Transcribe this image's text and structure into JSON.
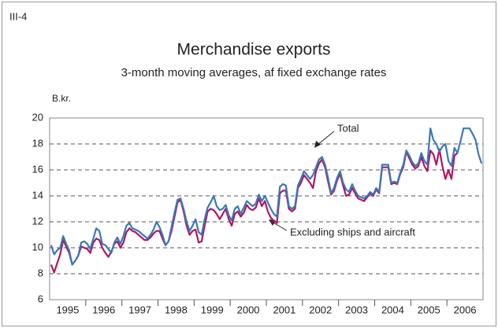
{
  "figure_label": "III-4",
  "chart_data": {
    "type": "line",
    "title": "Merchandise exports",
    "subtitle": "3-month moving averages, af fixed exchange rates",
    "y_axis_label": "B.kr.",
    "categories": [
      "1995",
      "1996",
      "1997",
      "1998",
      "1999",
      "2000",
      "2001",
      "2002",
      "2003",
      "2004",
      "2005",
      "2006"
    ],
    "ylim": [
      6,
      20
    ],
    "yticks": [
      6,
      8,
      10,
      12,
      14,
      16,
      18,
      20
    ],
    "grid": true,
    "series": [
      {
        "name": "Total",
        "color": "#3a78b8",
        "values": [
          [
            10.2,
            9.5,
            9.8,
            10.0,
            10.9,
            10.3,
            9.8,
            8.7,
            9.0,
            9.4,
            10.4,
            10.5
          ],
          [
            10.3,
            9.9,
            10.7,
            11.5,
            11.3,
            10.3,
            10.2,
            9.9,
            9.6,
            10.4,
            10.8,
            10.3
          ],
          [
            10.9,
            11.7,
            11.9,
            11.5,
            11.4,
            11.3,
            11.1,
            10.9,
            10.7,
            11.0,
            11.4,
            12.0
          ],
          [
            11.6,
            11.0,
            10.2,
            10.5,
            11.6,
            12.7,
            13.7,
            13.8,
            13.0,
            12.0,
            11.3,
            11.7
          ],
          [
            12.2,
            11.2,
            11.0,
            12.2,
            13.1,
            13.5,
            14.0,
            13.2,
            12.9,
            13.0,
            13.3,
            12.5
          ],
          [
            12.1,
            13.0,
            13.2,
            12.6,
            13.1,
            13.6,
            13.4,
            13.2,
            13.4,
            14.1,
            13.6,
            14.0
          ],
          [
            13.5,
            13.0,
            12.6,
            12.4,
            14.7,
            14.9,
            14.8,
            13.2,
            13.0,
            13.2,
            14.8,
            15.3
          ],
          [
            15.9,
            15.6,
            15.3,
            15.6,
            16.2,
            16.8,
            17.0,
            16.4,
            15.4,
            14.2,
            14.6,
            15.4
          ],
          [
            15.9,
            15.0,
            14.5,
            14.3,
            14.9,
            14.4,
            14.0,
            13.9,
            13.8,
            14.0,
            14.3,
            14.1
          ],
          [
            14.6,
            14.3,
            16.4,
            16.4,
            16.4,
            15.0,
            15.1,
            15.0,
            15.8,
            16.4,
            17.5,
            17.1
          ],
          [
            16.6,
            16.3,
            16.5,
            17.3,
            16.7,
            16.4,
            19.2,
            18.3,
            18.0,
            17.4,
            17.8,
            18.0
          ],
          [
            16.7,
            16.3,
            17.7,
            17.3,
            18.2,
            19.2,
            19.2,
            19.2,
            18.8,
            18.3,
            17.2,
            16.5
          ]
        ]
      },
      {
        "name": "Excluding ships and aircraft",
        "color": "#b0175f",
        "values": [
          [
            8.7,
            8.1,
            8.8,
            9.5,
            10.6,
            10.1,
            9.6,
            8.7,
            9.0,
            9.4,
            10.1,
            10.0
          ],
          [
            9.9,
            9.6,
            10.4,
            10.7,
            10.6,
            10.0,
            9.6,
            9.3,
            9.7,
            10.3,
            10.5,
            10.0
          ],
          [
            10.4,
            11.2,
            11.5,
            11.3,
            11.2,
            11.0,
            10.8,
            10.6,
            10.6,
            10.8,
            11.1,
            11.3
          ],
          [
            11.3,
            10.7,
            10.2,
            10.5,
            11.3,
            12.4,
            13.5,
            13.7,
            12.8,
            11.7,
            11.0,
            11.3
          ],
          [
            11.4,
            10.4,
            10.5,
            11.7,
            12.8,
            13.0,
            12.9,
            12.6,
            12.2,
            12.6,
            13.0,
            12.2
          ],
          [
            11.7,
            12.6,
            12.8,
            12.4,
            12.7,
            13.3,
            13.0,
            12.9,
            13.1,
            13.8,
            13.2,
            13.6
          ],
          [
            12.8,
            12.3,
            12.1,
            11.9,
            14.2,
            14.4,
            14.4,
            13.0,
            12.8,
            13.0,
            14.6,
            15.0
          ],
          [
            15.6,
            15.3,
            15.0,
            14.6,
            15.9,
            16.5,
            16.8,
            16.2,
            15.1,
            14.1,
            14.4,
            15.2
          ],
          [
            15.7,
            14.8,
            14.0,
            14.1,
            14.6,
            14.2,
            13.8,
            13.7,
            13.6,
            13.9,
            14.2,
            14.0
          ],
          [
            14.5,
            14.2,
            16.2,
            16.2,
            16.2,
            14.9,
            15.0,
            14.9,
            15.7,
            16.2,
            17.4,
            16.9
          ],
          [
            16.4,
            16.1,
            16.3,
            17.0,
            16.3,
            15.9,
            17.5,
            17.2,
            16.4,
            17.6,
            16.3,
            15.3
          ],
          [
            16.0,
            15.3,
            17.1,
            17.3
          ]
        ]
      }
    ]
  }
}
